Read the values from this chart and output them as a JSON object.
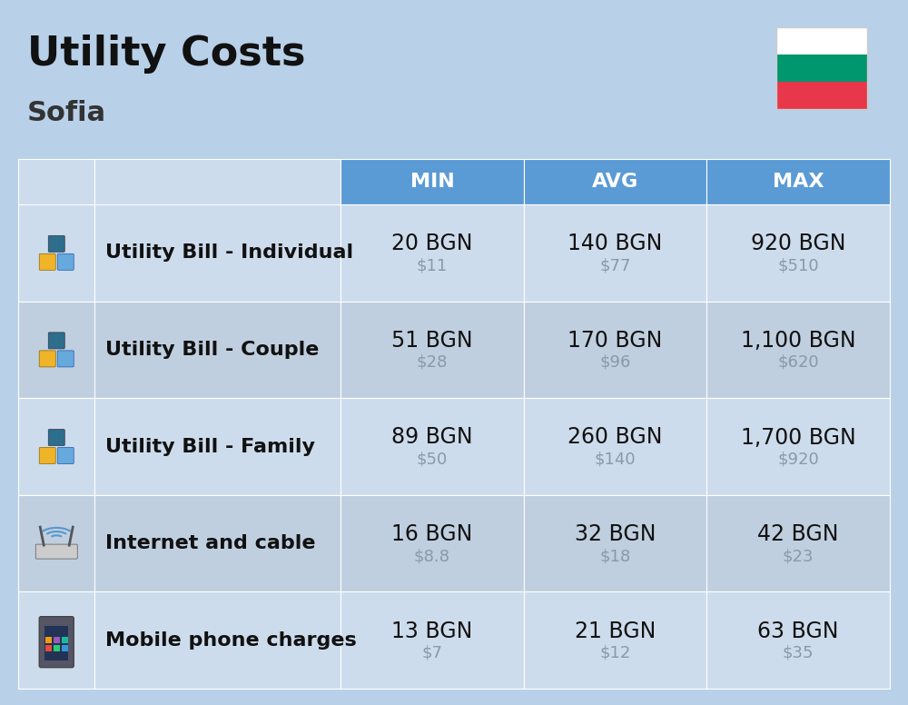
{
  "title": "Utility Costs",
  "subtitle": "Sofia",
  "background_color": "#b8d0e8",
  "header_color": "#5b9bd5",
  "row_color_even": "#cddcec",
  "row_color_odd": "#bfcfdf",
  "header_bg": "#5b9bd5",
  "header_text_color": "#ffffff",
  "header_labels": [
    "MIN",
    "AVG",
    "MAX"
  ],
  "rows": [
    {
      "label": "Utility Bill - Individual",
      "min_bgn": "20 BGN",
      "min_usd": "$11",
      "avg_bgn": "140 BGN",
      "avg_usd": "$77",
      "max_bgn": "920 BGN",
      "max_usd": "$510"
    },
    {
      "label": "Utility Bill - Couple",
      "min_bgn": "51 BGN",
      "min_usd": "$28",
      "avg_bgn": "170 BGN",
      "avg_usd": "$96",
      "max_bgn": "1,100 BGN",
      "max_usd": "$620"
    },
    {
      "label": "Utility Bill - Family",
      "min_bgn": "89 BGN",
      "min_usd": "$50",
      "avg_bgn": "260 BGN",
      "avg_usd": "$140",
      "max_bgn": "1,700 BGN",
      "max_usd": "$920"
    },
    {
      "label": "Internet and cable",
      "min_bgn": "16 BGN",
      "min_usd": "$8.8",
      "avg_bgn": "32 BGN",
      "avg_usd": "$18",
      "max_bgn": "42 BGN",
      "max_usd": "$23"
    },
    {
      "label": "Mobile phone charges",
      "min_bgn": "13 BGN",
      "min_usd": "$7",
      "avg_bgn": "21 BGN",
      "avg_usd": "$12",
      "max_bgn": "63 BGN",
      "max_usd": "$35"
    }
  ],
  "flag_colors": [
    "#ffffff",
    "#00966E",
    "#E8364A"
  ],
  "title_fontsize": 32,
  "subtitle_fontsize": 22,
  "header_fontsize": 16,
  "cell_fontsize": 17,
  "label_fontsize": 16,
  "usd_fontsize": 13,
  "usd_color": "#8899aa",
  "text_color": "#111111"
}
